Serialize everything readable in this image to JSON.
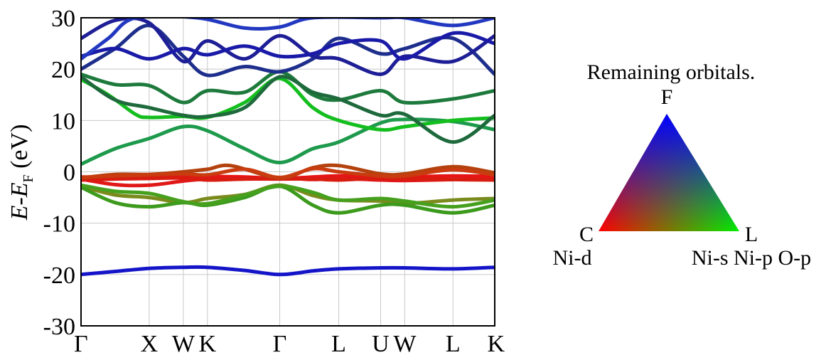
{
  "chart_data": {
    "type": "line",
    "ylabel": {
      "italic_1": "E",
      "dash": "-",
      "italic_2": "E",
      "sub": "F",
      "unit": " (eV)"
    },
    "ylim": [
      -30,
      30
    ],
    "yticks": [
      "30",
      "20",
      "10",
      "0",
      "-10",
      "-20",
      "-30"
    ],
    "ytick_values": [
      30,
      20,
      10,
      0,
      -10,
      -20,
      -30
    ],
    "kpath": [
      {
        "label": "Γ",
        "x": 0.0
      },
      {
        "label": "X",
        "x": 1.0
      },
      {
        "label": "W",
        "x": 1.5
      },
      {
        "label": "K",
        "x": 1.854
      },
      {
        "label": "Γ",
        "x": 2.914
      },
      {
        "label": "L",
        "x": 3.78
      },
      {
        "label": "U",
        "x": 4.394
      },
      {
        "label": "W",
        "x": 4.748
      },
      {
        "label": "L",
        "x": 5.455
      },
      {
        "label": "K",
        "x": 6.068
      }
    ],
    "xtick_labels": [
      "Γ",
      "X",
      "W",
      "K",
      "Γ",
      "L",
      "U",
      "W",
      "L",
      "K"
    ],
    "grid": true,
    "bands": [
      {
        "color": "#1414c8",
        "points": [
          [
            0,
            -20
          ],
          [
            0.5,
            -19.4
          ],
          [
            1,
            -18.8
          ],
          [
            1.5,
            -18.6
          ],
          [
            1.854,
            -18.6
          ],
          [
            2.4,
            -19.2
          ],
          [
            2.914,
            -20
          ],
          [
            3.4,
            -19.3
          ],
          [
            3.78,
            -18.9
          ],
          [
            4.394,
            -18.7
          ],
          [
            4.748,
            -18.7
          ],
          [
            5.455,
            -18.9
          ],
          [
            6.068,
            -18.6
          ]
        ]
      },
      {
        "color": "#7a8a1c",
        "points": [
          [
            0,
            -2.8
          ],
          [
            0.5,
            -4.5
          ],
          [
            1,
            -5
          ],
          [
            1.5,
            -6
          ],
          [
            1.854,
            -5.2
          ],
          [
            2.4,
            -4.4
          ],
          [
            2.914,
            -2.6
          ],
          [
            3.4,
            -4.6
          ],
          [
            3.78,
            -5.5
          ],
          [
            4.394,
            -5.7
          ],
          [
            4.748,
            -6.2
          ],
          [
            5.455,
            -5.5
          ],
          [
            6.068,
            -5.2
          ]
        ]
      },
      {
        "color": "#3c9a1c",
        "points": [
          [
            0,
            -3
          ],
          [
            0.5,
            -6
          ],
          [
            1,
            -6.8
          ],
          [
            1.5,
            -6
          ],
          [
            1.854,
            -6.5
          ],
          [
            2.4,
            -5
          ],
          [
            2.914,
            -2.8
          ],
          [
            3.4,
            -6.5
          ],
          [
            3.78,
            -8
          ],
          [
            4.394,
            -6.5
          ],
          [
            4.748,
            -6.5
          ],
          [
            5.455,
            -8
          ],
          [
            6.068,
            -6.5
          ]
        ]
      },
      {
        "color": "#46a01e",
        "points": [
          [
            0,
            -2.6
          ],
          [
            0.5,
            -3.8
          ],
          [
            1,
            -4.2
          ],
          [
            1.5,
            -5.8
          ],
          [
            1.854,
            -6.2
          ],
          [
            2.4,
            -4.5
          ],
          [
            2.914,
            -2.8
          ],
          [
            3.4,
            -4
          ],
          [
            3.78,
            -5.5
          ],
          [
            4.394,
            -5.2
          ],
          [
            4.748,
            -5.7
          ],
          [
            5.455,
            -6.8
          ],
          [
            6.068,
            -5.5
          ]
        ]
      },
      {
        "color": "#e61414",
        "points": [
          [
            0,
            -1
          ],
          [
            0.5,
            -1
          ],
          [
            1,
            -0.8
          ],
          [
            1.5,
            -0.9
          ],
          [
            1.854,
            -0.9
          ],
          [
            2.4,
            -1
          ],
          [
            2.914,
            -1.3
          ],
          [
            3.4,
            -1
          ],
          [
            3.78,
            -0.8
          ],
          [
            4.394,
            -1
          ],
          [
            4.748,
            -1
          ],
          [
            5.455,
            -0.8
          ],
          [
            6.068,
            -0.9
          ]
        ]
      },
      {
        "color": "#e01818",
        "points": [
          [
            0,
            -1.4
          ],
          [
            0.5,
            -2.5
          ],
          [
            1,
            -2.6
          ],
          [
            1.5,
            -1.8
          ],
          [
            1.854,
            -1.4
          ],
          [
            2.4,
            -1.4
          ],
          [
            2.914,
            -1.2
          ],
          [
            3.4,
            -1.5
          ],
          [
            3.78,
            -1.3
          ],
          [
            4.394,
            -1.6
          ],
          [
            4.748,
            -1.7
          ],
          [
            5.455,
            -1.5
          ],
          [
            6.068,
            -1.4
          ]
        ]
      },
      {
        "color": "#d81c10",
        "points": [
          [
            0,
            -1.6
          ],
          [
            0.5,
            -1.4
          ],
          [
            1,
            -1.3
          ],
          [
            1.5,
            -1.2
          ],
          [
            1.854,
            -1.6
          ],
          [
            2.4,
            -1.4
          ],
          [
            2.914,
            -1.4
          ],
          [
            3.4,
            -1.4
          ],
          [
            3.78,
            -1.6
          ],
          [
            4.394,
            -1.2
          ],
          [
            4.748,
            -1.3
          ],
          [
            5.455,
            -1.5
          ],
          [
            6.068,
            -1.6
          ]
        ]
      },
      {
        "color": "#b4420e",
        "points": [
          [
            0,
            -1.2
          ],
          [
            0.5,
            -0.5
          ],
          [
            1,
            -0.5
          ],
          [
            1.5,
            0
          ],
          [
            1.854,
            0.5
          ],
          [
            2.2,
            1.2
          ],
          [
            2.914,
            -1.2
          ],
          [
            3.4,
            0.8
          ],
          [
            3.78,
            1.2
          ],
          [
            4.394,
            -0.4
          ],
          [
            4.748,
            -0.4
          ],
          [
            5.455,
            1
          ],
          [
            6.068,
            -0.2
          ]
        ]
      },
      {
        "color": "#c83c10",
        "points": [
          [
            0,
            -1.1
          ],
          [
            0.5,
            -0.8
          ],
          [
            1,
            -0.6
          ],
          [
            1.5,
            -0.4
          ],
          [
            1.854,
            -0.6
          ],
          [
            2.4,
            0.5
          ],
          [
            2.914,
            -1.1
          ],
          [
            3.4,
            0.6
          ],
          [
            3.78,
            0
          ],
          [
            4.394,
            -0.8
          ],
          [
            4.748,
            -0.8
          ],
          [
            5.455,
            0.4
          ],
          [
            6.068,
            -0.6
          ]
        ]
      },
      {
        "color": "#1e9a4c",
        "points": [
          [
            0,
            1.5
          ],
          [
            0.5,
            4.5
          ],
          [
            1,
            6.5
          ],
          [
            1.5,
            8.8
          ],
          [
            1.854,
            8
          ],
          [
            2.4,
            4.5
          ],
          [
            2.914,
            1.8
          ],
          [
            3.4,
            4.5
          ],
          [
            3.78,
            5.8
          ],
          [
            4.394,
            9.5
          ],
          [
            4.748,
            10.2
          ],
          [
            5.455,
            9.8
          ],
          [
            6.068,
            8.2
          ]
        ]
      },
      {
        "color": "#14be1e",
        "points": [
          [
            0,
            18
          ],
          [
            0.4,
            15
          ],
          [
            0.8,
            11.2
          ],
          [
            1,
            10.6
          ],
          [
            1.5,
            10.8
          ],
          [
            1.854,
            10.6
          ],
          [
            2.4,
            13.5
          ],
          [
            2.914,
            18.2
          ],
          [
            3.4,
            12.5
          ],
          [
            3.78,
            10
          ],
          [
            4.394,
            8.2
          ],
          [
            4.748,
            8.8
          ],
          [
            5.455,
            10
          ],
          [
            6.068,
            10.5
          ]
        ]
      },
      {
        "color": "#1e7a3c",
        "points": [
          [
            0,
            19
          ],
          [
            0.5,
            17
          ],
          [
            1,
            16.8
          ],
          [
            1.5,
            13.5
          ],
          [
            1.854,
            15.8
          ],
          [
            2.4,
            15.5
          ],
          [
            2.914,
            19.5
          ],
          [
            3.4,
            15
          ],
          [
            3.78,
            14
          ],
          [
            4.394,
            15.8
          ],
          [
            4.748,
            13.5
          ],
          [
            5.455,
            14.2
          ],
          [
            6.068,
            15.8
          ]
        ]
      },
      {
        "color": "#1e6a3c",
        "points": [
          [
            0,
            18.5
          ],
          [
            0.5,
            14
          ],
          [
            1,
            12.5
          ],
          [
            1.5,
            11
          ],
          [
            1.854,
            10.8
          ],
          [
            2.4,
            12.5
          ],
          [
            2.914,
            18.5
          ],
          [
            3.4,
            15.5
          ],
          [
            3.78,
            14.2
          ],
          [
            4.394,
            11
          ],
          [
            4.748,
            11.2
          ],
          [
            5.455,
            5.8
          ],
          [
            6.068,
            11
          ]
        ]
      },
      {
        "color": "#1e2e8c",
        "points": [
          [
            0,
            20
          ],
          [
            0.5,
            24
          ],
          [
            1,
            28.5
          ],
          [
            1.5,
            22.5
          ],
          [
            1.854,
            18.8
          ],
          [
            2.4,
            20.5
          ],
          [
            2.914,
            19.5
          ],
          [
            3.4,
            22
          ],
          [
            3.78,
            26
          ],
          [
            4.394,
            23
          ],
          [
            4.748,
            24
          ],
          [
            5.455,
            26
          ],
          [
            6.068,
            19
          ]
        ]
      },
      {
        "color": "#1e1e96",
        "points": [
          [
            0,
            26
          ],
          [
            0.5,
            29.5
          ],
          [
            1,
            29
          ],
          [
            1.5,
            21.5
          ],
          [
            1.854,
            25.5
          ],
          [
            2.4,
            22
          ],
          [
            2.914,
            26.5
          ],
          [
            3.4,
            22.5
          ],
          [
            3.78,
            22
          ],
          [
            4.394,
            19
          ],
          [
            4.748,
            22.5
          ],
          [
            5.455,
            21.5
          ],
          [
            6.068,
            26.5
          ]
        ]
      },
      {
        "color": "#1a1aa8",
        "points": [
          [
            0,
            22.5
          ],
          [
            0.5,
            24
          ],
          [
            1,
            22
          ],
          [
            1.5,
            24
          ],
          [
            1.854,
            22.8
          ],
          [
            2.4,
            24.5
          ],
          [
            2.914,
            22.5
          ],
          [
            3.4,
            23
          ],
          [
            3.78,
            25
          ],
          [
            4.394,
            25.5
          ],
          [
            4.748,
            22
          ],
          [
            5.455,
            27
          ],
          [
            6.068,
            25
          ]
        ]
      },
      {
        "color": "#2238c0",
        "points": [
          [
            0,
            22
          ],
          [
            0.4,
            26
          ],
          [
            0.8,
            30
          ],
          [
            1.7,
            30
          ],
          [
            2.4,
            28
          ],
          [
            2.914,
            28.2
          ],
          [
            3.4,
            30
          ],
          [
            4.394,
            30
          ],
          [
            4.748,
            30
          ],
          [
            5.455,
            28.5
          ],
          [
            6.068,
            30
          ]
        ]
      }
    ]
  },
  "legend": {
    "title": "Remaining orbitals.",
    "vertex_top": "F",
    "vertex_left": "C",
    "vertex_right": "L",
    "label_left": "Ni-d",
    "label_right": "Ni-s Ni-p O-p",
    "colors": {
      "left": "#ff0000",
      "right": "#00ee00",
      "top": "#0000ff"
    }
  }
}
